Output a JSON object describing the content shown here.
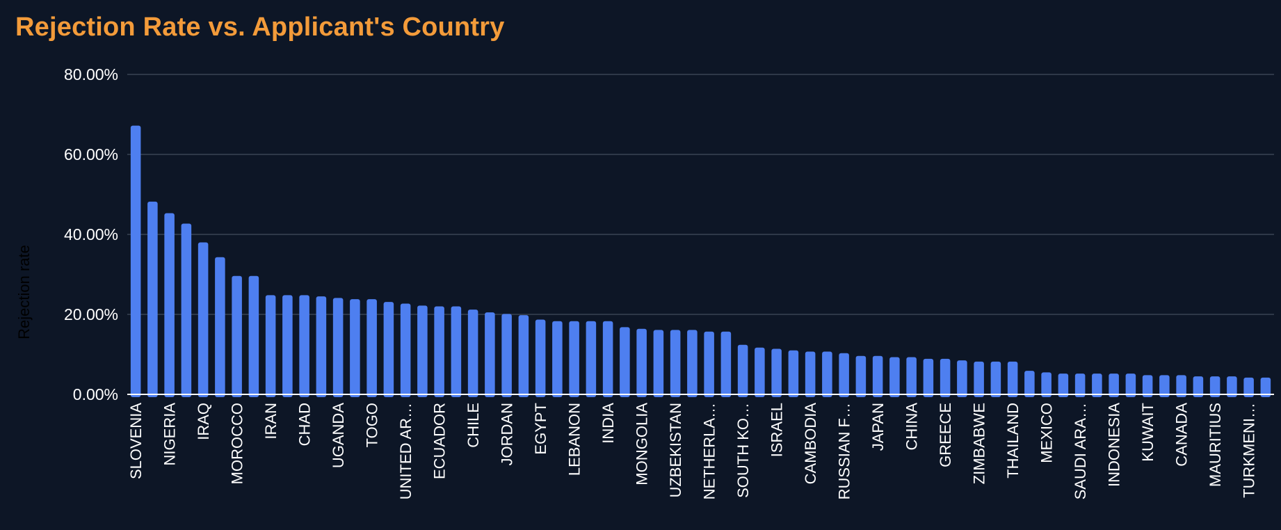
{
  "chart_data": {
    "type": "bar",
    "title": "Rejection Rate vs. Applicant's Country",
    "xlabel": "",
    "ylabel": "Rejection rate",
    "ylim": [
      0,
      80
    ],
    "y_ticks": [
      "0.00%",
      "20.00%",
      "40.00%",
      "60.00%",
      "80.00%"
    ],
    "grid": true,
    "colors": {
      "bar": "#4e7ff0",
      "title": "#f39b3a",
      "background": "#0d1626"
    },
    "categories": [
      "SLOVENIA",
      "",
      "NIGERIA",
      "",
      "IRAQ",
      "",
      "MOROCCO",
      "",
      "IRAN",
      "",
      "CHAD",
      "",
      "UGANDA",
      "",
      "TOGO",
      "",
      "UNITED AR…",
      "",
      "ECUADOR",
      "",
      "CHILE",
      "",
      "JORDAN",
      "",
      "EGYPT",
      "",
      "LEBANON",
      "",
      "INDIA",
      "",
      "MONGOLIA",
      "",
      "UZBEKISTAN",
      "",
      "NETHERLA…",
      "",
      "SOUTH KO…",
      "",
      "ISRAEL",
      "",
      "CAMBODIA",
      "",
      "RUSSIAN F…",
      "",
      "JAPAN",
      "",
      "CHINA",
      "",
      "GREECE",
      "",
      "ZIMBABWE",
      "",
      "THAILAND",
      "",
      "MEXICO",
      "",
      "SAUDI ARA…",
      "",
      "INDONESIA",
      "",
      "KUWAIT",
      "",
      "CANADA",
      "",
      "MAURITIUS",
      "",
      "TURKMENI…",
      ""
    ],
    "values": [
      67.2,
      48.2,
      45.3,
      42.7,
      38.0,
      34.3,
      29.6,
      29.6,
      24.8,
      24.8,
      24.8,
      24.5,
      24.1,
      23.8,
      23.8,
      23.1,
      22.7,
      22.2,
      22.0,
      22.0,
      21.2,
      20.5,
      20.1,
      19.8,
      18.7,
      18.3,
      18.3,
      18.3,
      18.3,
      16.8,
      16.4,
      16.1,
      16.1,
      16.1,
      15.7,
      15.7,
      12.4,
      11.7,
      11.4,
      11.0,
      10.7,
      10.7,
      10.3,
      9.6,
      9.6,
      9.3,
      9.3,
      8.9,
      8.9,
      8.5,
      8.2,
      8.2,
      8.2,
      5.9,
      5.5,
      5.2,
      5.2,
      5.2,
      5.2,
      5.2,
      4.8,
      4.8,
      4.8,
      4.5,
      4.5,
      4.5,
      4.2,
      4.2
    ]
  }
}
